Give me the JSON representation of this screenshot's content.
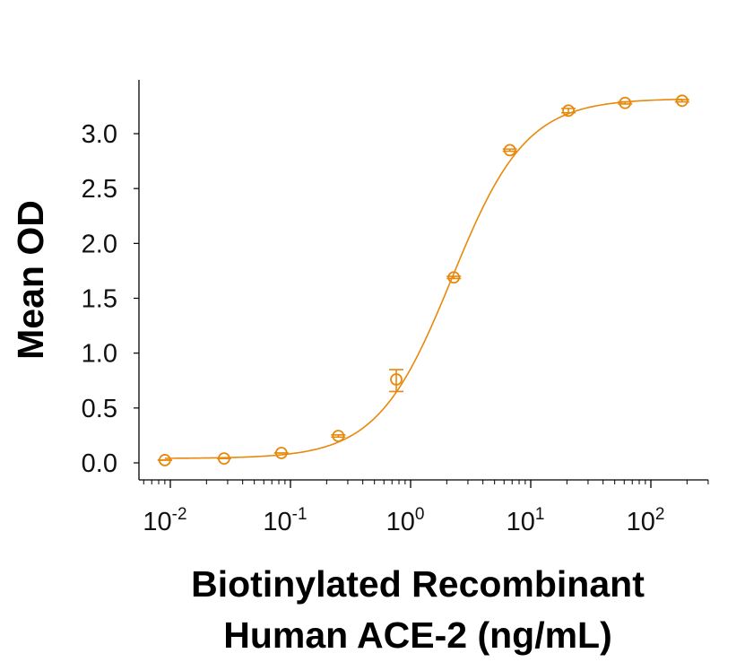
{
  "chart_data": {
    "type": "scatter",
    "title": "",
    "xlabel_lines": [
      "Biotinylated Recombinant",
      "Human ACE-2 (ng/mL)"
    ],
    "xlabel": "Biotinylated Recombinant Human ACE-2 (ng/mL)",
    "ylabel": "Mean OD",
    "xscale": "log",
    "xlim": [
      0.0055,
      300
    ],
    "ylim": [
      -0.155,
      3.48
    ],
    "x_ticks": [
      {
        "value": 0.01,
        "base": "10",
        "exp": "-2"
      },
      {
        "value": 0.1,
        "base": "10",
        "exp": "-1"
      },
      {
        "value": 1,
        "base": "10",
        "exp": "0"
      },
      {
        "value": 10,
        "base": "10",
        "exp": "1"
      },
      {
        "value": 100,
        "base": "10",
        "exp": "2"
      }
    ],
    "y_ticks": [
      {
        "value": 0.0,
        "label": "0.0"
      },
      {
        "value": 0.5,
        "label": "0.5"
      },
      {
        "value": 1.0,
        "label": "1.0"
      },
      {
        "value": 1.5,
        "label": "1.5"
      },
      {
        "value": 2.0,
        "label": "2.0"
      },
      {
        "value": 2.5,
        "label": "2.5"
      },
      {
        "value": 3.0,
        "label": "3.0"
      }
    ],
    "grid": false,
    "legend": null,
    "color": "#E8890C",
    "series": [
      {
        "name": "Mean OD",
        "marker": "open-circle",
        "x": [
          0.009,
          0.028,
          0.084,
          0.25,
          0.76,
          2.29,
          6.7,
          20.6,
          61,
          182
        ],
        "y": [
          0.025,
          0.04,
          0.09,
          0.245,
          0.76,
          1.69,
          2.85,
          3.21,
          3.28,
          3.3
        ],
        "yerr_low": [
          0.025,
          0.04,
          0.09,
          0.235,
          0.65,
          1.68,
          2.84,
          3.19,
          3.27,
          3.29
        ],
        "yerr_high": [
          0.025,
          0.04,
          0.09,
          0.255,
          0.85,
          1.7,
          2.86,
          3.23,
          3.29,
          3.31
        ]
      }
    ],
    "fit": {
      "model": "4PL",
      "bottom": 0.04,
      "top": 3.32,
      "ec50": 2.2,
      "hill": 1.4
    }
  }
}
